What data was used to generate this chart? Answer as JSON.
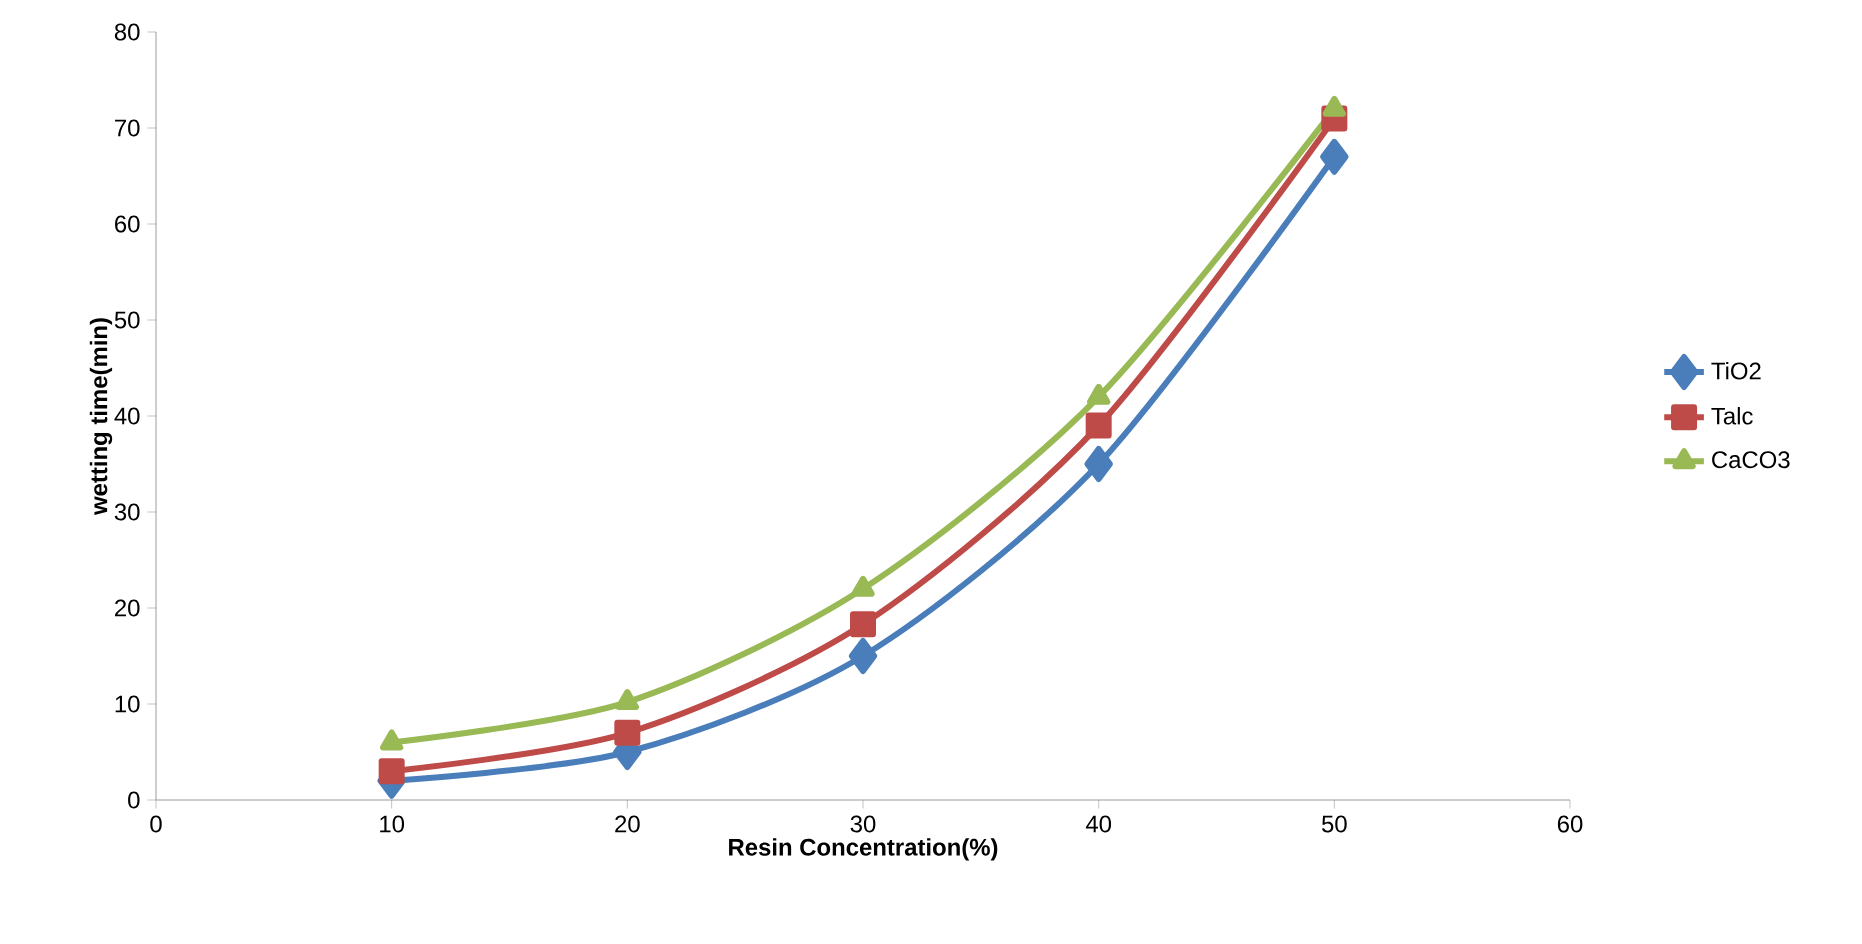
{
  "chart_data": {
    "type": "line",
    "xlabel": "Resin Concentration(%)",
    "ylabel": "wetting time(min)",
    "x": [
      10,
      20,
      30,
      40,
      50
    ],
    "series": [
      {
        "name": "TiO2",
        "color": "#4a7ebb",
        "marker": "diamond",
        "values": [
          2,
          5,
          15,
          35,
          67
        ]
      },
      {
        "name": "Talc",
        "color": "#be4b48",
        "marker": "square",
        "values": [
          3,
          7,
          18.3,
          39,
          71
        ]
      },
      {
        "name": "CaCO3",
        "color": "#98b954",
        "marker": "triangle",
        "values": [
          6,
          10.2,
          22,
          42,
          72
        ]
      }
    ],
    "xlim": [
      0,
      60
    ],
    "xticks": [
      0,
      10,
      20,
      30,
      40,
      50,
      60
    ],
    "ylim": [
      0,
      80
    ],
    "yticks": [
      0,
      10,
      20,
      30,
      40,
      50,
      60,
      70,
      80
    ],
    "grid": false,
    "legend": "right",
    "line_style": "solid"
  }
}
